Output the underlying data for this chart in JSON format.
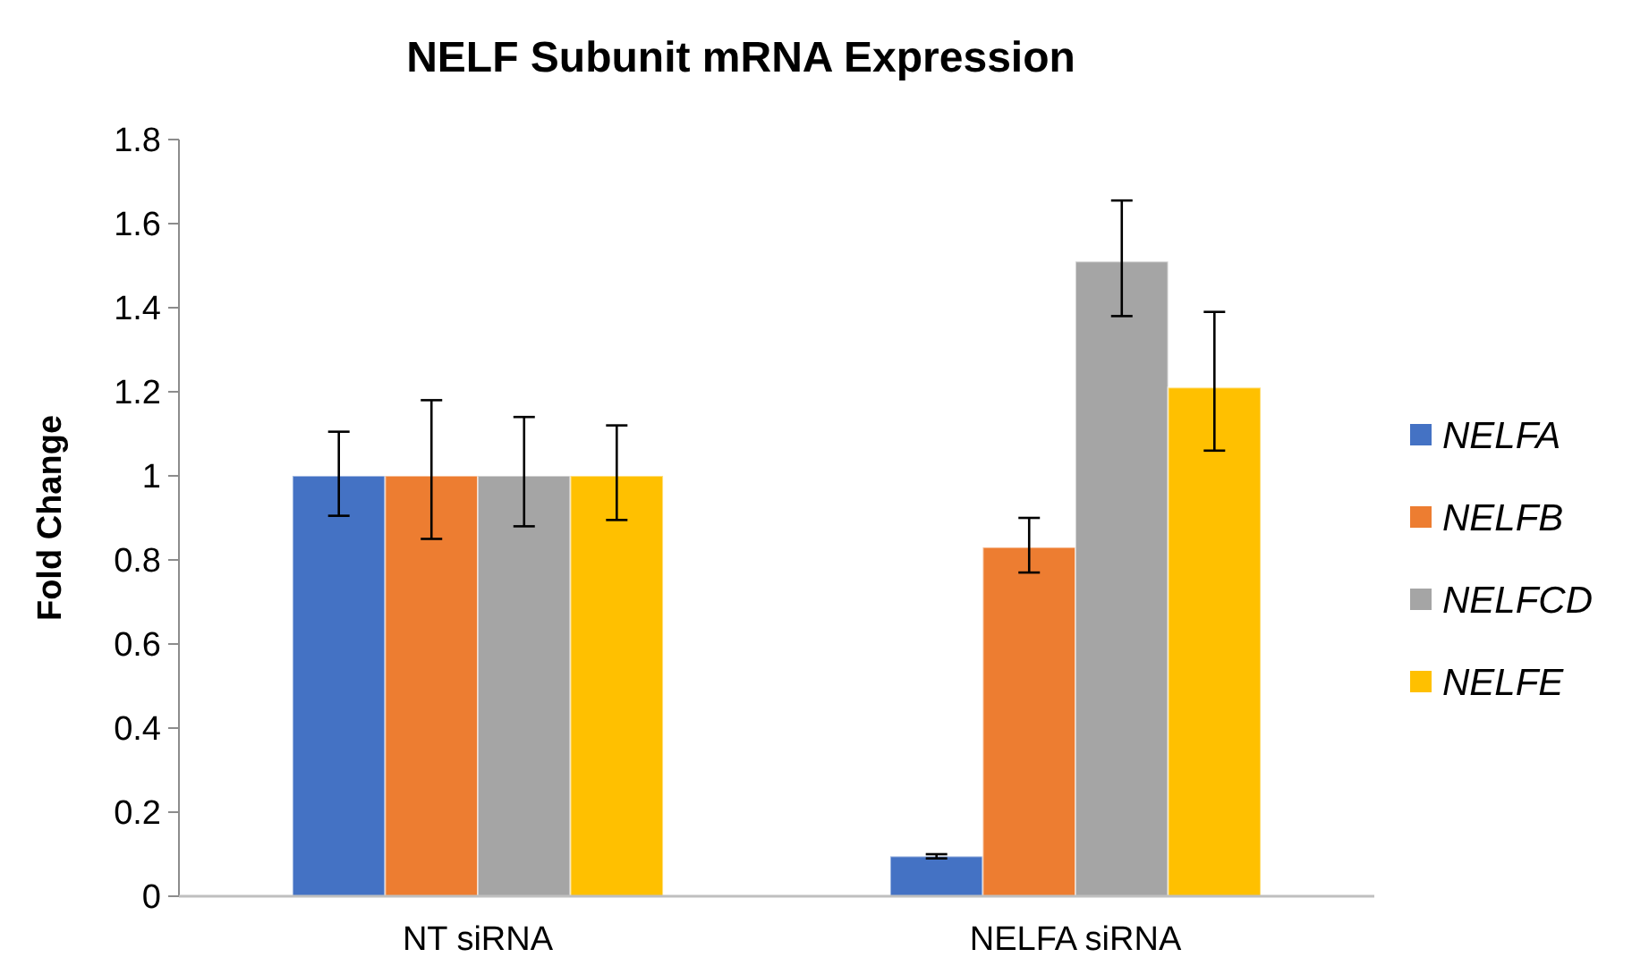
{
  "chart_data": {
    "type": "bar",
    "title": "NELF Subunit mRNA Expression",
    "ylabel": "Fold Change",
    "categories": [
      "NT siRNA",
      "NELFA siRNA"
    ],
    "series": [
      {
        "name": "NELFA",
        "color": "#4472c4",
        "values": [
          1,
          0.095
        ],
        "errors": [
          [
            0.905,
            1.105
          ],
          [
            0.09,
            0.1
          ]
        ]
      },
      {
        "name": "NELFB",
        "color": "#ed7d31",
        "values": [
          1,
          0.83
        ],
        "errors": [
          [
            0.85,
            1.18
          ],
          [
            0.77,
            0.9
          ]
        ]
      },
      {
        "name": "NELFCD",
        "color": "#a5a5a5",
        "values": [
          1,
          1.51
        ],
        "errors": [
          [
            0.88,
            1.14
          ],
          [
            1.38,
            1.655
          ]
        ]
      },
      {
        "name": "NELFE",
        "color": "#ffc000",
        "values": [
          1,
          1.21
        ],
        "errors": [
          [
            0.895,
            1.12
          ],
          [
            1.06,
            1.39
          ]
        ]
      }
    ],
    "ylim": [
      0,
      1.8
    ],
    "yticks": [
      0,
      0.2,
      0.4,
      0.6,
      0.8,
      1,
      1.2,
      1.4,
      1.6,
      1.8
    ],
    "grid": false,
    "legend": "right"
  }
}
